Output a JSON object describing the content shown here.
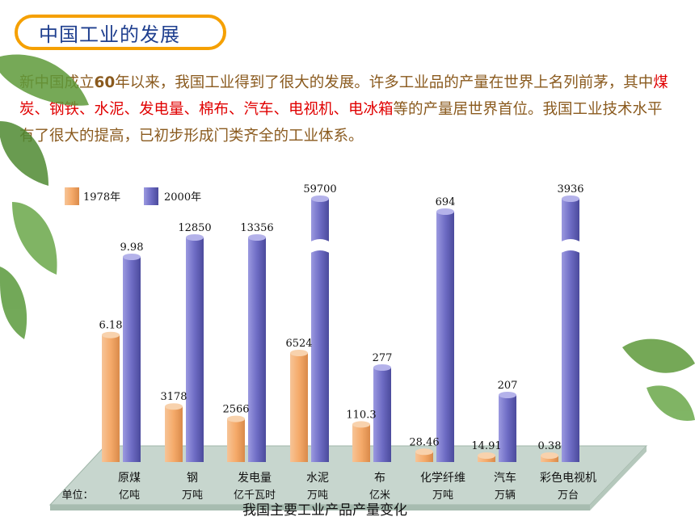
{
  "header": {
    "title": "中国工业的发展"
  },
  "intro": {
    "s1": "新中国成立",
    "s2": "60",
    "s3": "年以来，我国工业得到了很大的发展。许多工业品的产量在世界上名列前茅，其中",
    "s4": "煤炭、钢铁、水泥、发电量、棉布、汽车、电视机、电冰箱",
    "s5": "等的产量居世界首位。我国工业技术水平有了很大的提高，已初步形成门类齐全的工业体系。"
  },
  "colors": {
    "c1978": "#f0a868",
    "c2000": "#6e6cc4",
    "floor": "#c7d6ce",
    "accent": "#f5a000"
  },
  "chart_data": {
    "type": "bar",
    "title": "我国主要工业产品产量变化",
    "legend": [
      "1978年",
      "2000年"
    ],
    "unit_label": "单位：",
    "categories": [
      "原煤",
      "钢",
      "发电量",
      "水泥",
      "布",
      "化学纤维",
      "汽车",
      "彩色电视机"
    ],
    "units": [
      "亿吨",
      "万吨",
      "亿千瓦时",
      "万吨",
      "亿米",
      "万吨",
      "万辆",
      "万台"
    ],
    "series": [
      {
        "name": "1978年",
        "values": [
          6.18,
          3178,
          2566,
          6524,
          110.3,
          28.46,
          14.91,
          0.38
        ],
        "labels": [
          "6.18",
          "3178",
          "2566",
          "6524",
          "110.3",
          "28.46",
          "14.91",
          "0.38"
        ]
      },
      {
        "name": "2000年",
        "values": [
          9.98,
          12850,
          13356,
          59700,
          277,
          694,
          207,
          3936
        ],
        "labels": [
          "9.98",
          "12850",
          "13356",
          "59700",
          "277",
          "694",
          "207",
          "3936"
        ]
      }
    ],
    "broken_axis_categories": [
      "水泥",
      "彩色电视机"
    ]
  }
}
